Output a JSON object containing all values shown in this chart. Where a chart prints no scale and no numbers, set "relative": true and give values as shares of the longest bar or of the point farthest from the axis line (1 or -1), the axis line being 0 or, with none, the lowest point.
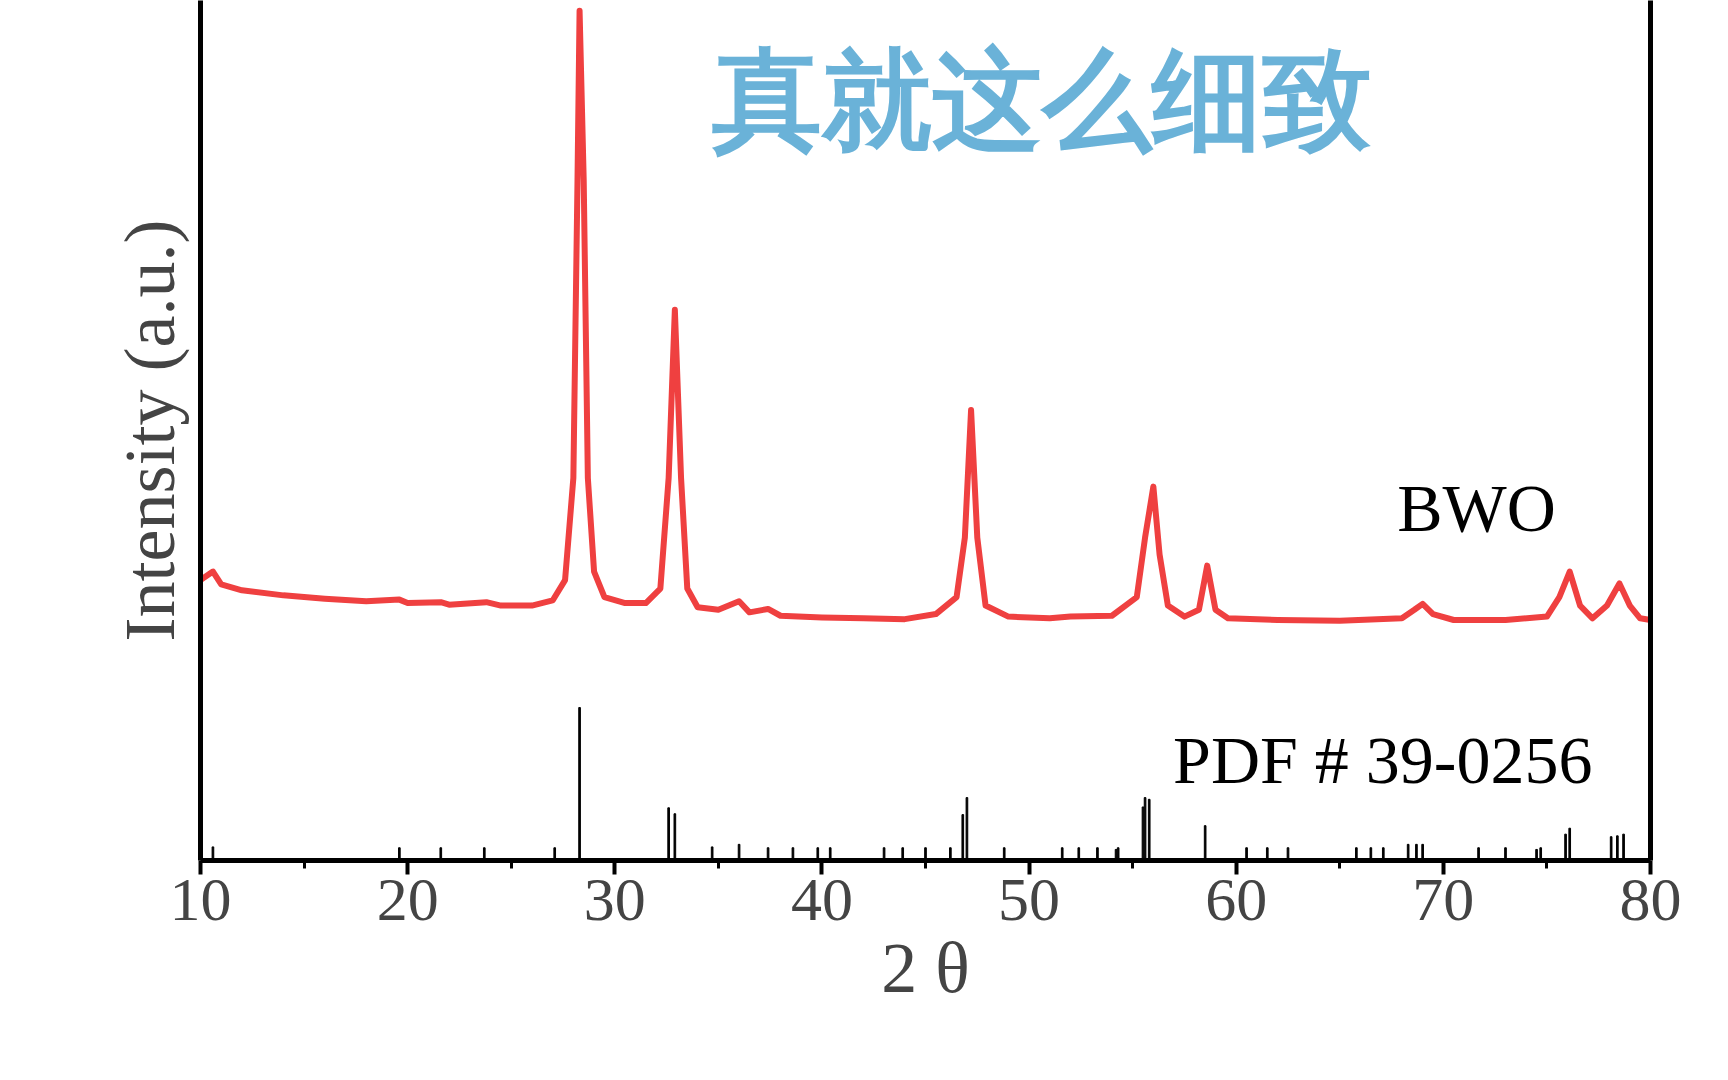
{
  "chart_data": {
    "type": "line",
    "relative": true,
    "xlabel": "2 θ",
    "ylabel": "Intensity (a.u.)",
    "xlim": [
      10,
      80
    ],
    "xticks": [
      10,
      20,
      30,
      40,
      50,
      60,
      70,
      80
    ],
    "grid": false,
    "annotations": [
      "真就这么细致"
    ],
    "series": [
      {
        "name": "BWO",
        "color": "#ef4040",
        "x": [
          10.0,
          10.6,
          11,
          12,
          14,
          16,
          18,
          19.6,
          20,
          21.6,
          22,
          23.8,
          24.5,
          26,
          27,
          27.6,
          28.0,
          28.2,
          28.3,
          28.5,
          28.7,
          29.0,
          29.5,
          30.5,
          31.5,
          32.2,
          32.6,
          32.9,
          33.2,
          33.5,
          34,
          35,
          36.0,
          36.5,
          37.4,
          38,
          40,
          42,
          44,
          45.5,
          46.5,
          46.9,
          47.2,
          47.5,
          47.9,
          49,
          51,
          52,
          54,
          55.2,
          55.6,
          56.0,
          56.3,
          56.7,
          57.5,
          58.2,
          58.6,
          59.0,
          59.6,
          62,
          65,
          68,
          68.6,
          69.0,
          69.5,
          70.5,
          73,
          75,
          75.6,
          76.1,
          76.6,
          77.2,
          77.9,
          78.5,
          79.0,
          79.5,
          80
        ],
        "values": [
          0.33,
          0.34,
          0.325,
          0.318,
          0.312,
          0.308,
          0.305,
          0.307,
          0.303,
          0.304,
          0.301,
          0.304,
          0.3,
          0.3,
          0.306,
          0.33,
          0.45,
          0.8,
          1.0,
          0.8,
          0.45,
          0.34,
          0.31,
          0.303,
          0.303,
          0.32,
          0.45,
          0.648,
          0.45,
          0.32,
          0.298,
          0.295,
          0.305,
          0.292,
          0.296,
          0.288,
          0.286,
          0.285,
          0.284,
          0.29,
          0.31,
          0.38,
          0.53,
          0.38,
          0.3,
          0.287,
          0.285,
          0.287,
          0.288,
          0.31,
          0.38,
          0.44,
          0.36,
          0.3,
          0.287,
          0.295,
          0.347,
          0.295,
          0.285,
          0.283,
          0.282,
          0.285,
          0.295,
          0.302,
          0.29,
          0.283,
          0.283,
          0.287,
          0.31,
          0.34,
          0.3,
          0.285,
          0.3,
          0.326,
          0.3,
          0.285,
          0.283
        ]
      },
      {
        "name": "PDF # 39-0256",
        "type": "bar",
        "color": "#000000",
        "x": [
          10.6,
          19.6,
          21.6,
          23.7,
          27.1,
          28.3,
          32.6,
          32.9,
          34.7,
          36.0,
          37.4,
          38.6,
          39.8,
          40.4,
          43.0,
          43.9,
          45.0,
          46.2,
          46.8,
          47.0,
          48.8,
          51.6,
          52.4,
          53.3,
          54.2,
          54.3,
          55.5,
          55.6,
          55.8,
          58.5,
          60.5,
          61.5,
          62.5,
          65.8,
          66.5,
          67.1,
          68.3,
          68.7,
          69.0,
          71.7,
          73.0,
          74.5,
          74.7,
          75.9,
          76.1,
          78.1,
          78.4,
          78.7
        ],
        "values": [
          0.016,
          0.015,
          0.015,
          0.015,
          0.015,
          0.18,
          0.062,
          0.055,
          0.016,
          0.019,
          0.015,
          0.015,
          0.015,
          0.015,
          0.015,
          0.015,
          0.015,
          0.015,
          0.054,
          0.074,
          0.015,
          0.015,
          0.015,
          0.015,
          0.013,
          0.015,
          0.063,
          0.074,
          0.072,
          0.041,
          0.015,
          0.015,
          0.015,
          0.015,
          0.015,
          0.015,
          0.019,
          0.019,
          0.019,
          0.015,
          0.015,
          0.013,
          0.015,
          0.031,
          0.038,
          0.028,
          0.029,
          0.031
        ]
      }
    ]
  }
}
